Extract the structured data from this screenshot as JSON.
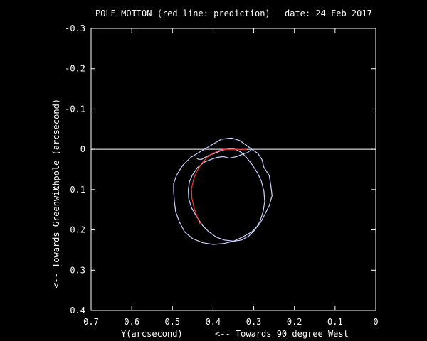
{
  "header": {
    "title": "POLE MOTION (red line: prediction)",
    "date": "date: 24 Feb 2017"
  },
  "chart_data": {
    "type": "line",
    "title": "POLE MOTION (red line: prediction)",
    "date_label": "date: 24 Feb 2017",
    "xlabel": "Y(arcsecond)",
    "xlabel_note": "<-- Towards 90 degree West",
    "ylabel": "X pole (arcsecond)",
    "ylabel_note": "<-- Towards Greenwich",
    "xlim": [
      0.7,
      0
    ],
    "ylim": [
      -0.3,
      0.4
    ],
    "x_ticks": [
      "0.7",
      "0.6",
      "0.5",
      "0.4",
      "0.3",
      "0.2",
      "0.1",
      "0"
    ],
    "y_ticks": [
      "-0.3",
      "-0.2",
      "-0.1",
      "0",
      "0.1",
      "0.2",
      "0.3",
      "0.4"
    ],
    "grid": false,
    "reference_line_y": 0,
    "series": [
      {
        "color": "#ccd4ff",
        "points": [
          [
            0.305,
            0.0
          ],
          [
            0.29,
            0.01
          ],
          [
            0.28,
            0.025
          ],
          [
            0.275,
            0.045
          ],
          [
            0.262,
            0.065
          ],
          [
            0.258,
            0.09
          ],
          [
            0.255,
            0.115
          ],
          [
            0.262,
            0.14
          ],
          [
            0.272,
            0.16
          ],
          [
            0.285,
            0.185
          ],
          [
            0.305,
            0.205
          ],
          [
            0.328,
            0.218
          ],
          [
            0.35,
            0.228
          ],
          [
            0.375,
            0.234
          ],
          [
            0.4,
            0.236
          ],
          [
            0.425,
            0.232
          ],
          [
            0.45,
            0.222
          ],
          [
            0.47,
            0.205
          ],
          [
            0.483,
            0.18
          ],
          [
            0.492,
            0.155
          ],
          [
            0.495,
            0.13
          ],
          [
            0.497,
            0.105
          ],
          [
            0.497,
            0.085
          ],
          [
            0.49,
            0.065
          ],
          [
            0.475,
            0.04
          ],
          [
            0.455,
            0.02
          ],
          [
            0.43,
            0.005
          ],
          [
            0.405,
            -0.01
          ],
          [
            0.38,
            -0.025
          ],
          [
            0.355,
            -0.028
          ],
          [
            0.335,
            -0.022
          ],
          [
            0.318,
            -0.01
          ],
          [
            0.305,
            0.0
          ]
        ]
      },
      {
        "color": "#ccd4ff",
        "points": [
          [
            0.305,
            0.0
          ],
          [
            0.315,
            0.008
          ],
          [
            0.328,
            0.012
          ],
          [
            0.342,
            0.018
          ],
          [
            0.36,
            0.022
          ],
          [
            0.375,
            0.018
          ],
          [
            0.39,
            0.02
          ],
          [
            0.405,
            0.025
          ],
          [
            0.422,
            0.032
          ],
          [
            0.438,
            0.045
          ],
          [
            0.45,
            0.062
          ],
          [
            0.458,
            0.08
          ],
          [
            0.461,
            0.1
          ],
          [
            0.46,
            0.122
          ],
          [
            0.453,
            0.145
          ],
          [
            0.44,
            0.168
          ],
          [
            0.425,
            0.19
          ],
          [
            0.41,
            0.205
          ],
          [
            0.392,
            0.218
          ],
          [
            0.372,
            0.225
          ],
          [
            0.35,
            0.228
          ],
          [
            0.33,
            0.225
          ],
          [
            0.312,
            0.215
          ],
          [
            0.297,
            0.2
          ],
          [
            0.285,
            0.18
          ],
          [
            0.277,
            0.155
          ],
          [
            0.273,
            0.13
          ],
          [
            0.275,
            0.105
          ],
          [
            0.281,
            0.08
          ],
          [
            0.291,
            0.058
          ],
          [
            0.304,
            0.038
          ],
          [
            0.318,
            0.02
          ],
          [
            0.33,
            0.008
          ],
          [
            0.345,
            0.0
          ],
          [
            0.355,
            -0.002
          ]
        ]
      },
      {
        "color": "#ccd4ff",
        "points": [
          [
            0.355,
            -0.002
          ],
          [
            0.368,
            0.0
          ],
          [
            0.382,
            0.004
          ],
          [
            0.396,
            0.01
          ],
          [
            0.41,
            0.015
          ],
          [
            0.42,
            0.02
          ],
          [
            0.428,
            0.025
          ],
          [
            0.436,
            0.025
          ],
          [
            0.44,
            0.022
          ]
        ]
      },
      {
        "color": "#ff3030",
        "points": [
          [
            0.317,
            0.0
          ],
          [
            0.333,
            0.0
          ],
          [
            0.35,
            0.0
          ],
          [
            0.367,
            0.0
          ],
          [
            0.383,
            0.002
          ],
          [
            0.4,
            0.01
          ],
          [
            0.415,
            0.02
          ],
          [
            0.428,
            0.035
          ],
          [
            0.44,
            0.055
          ],
          [
            0.448,
            0.075
          ],
          [
            0.453,
            0.098
          ],
          [
            0.452,
            0.122
          ],
          [
            0.447,
            0.145
          ],
          [
            0.44,
            0.165
          ],
          [
            0.432,
            0.185
          ]
        ]
      }
    ]
  }
}
